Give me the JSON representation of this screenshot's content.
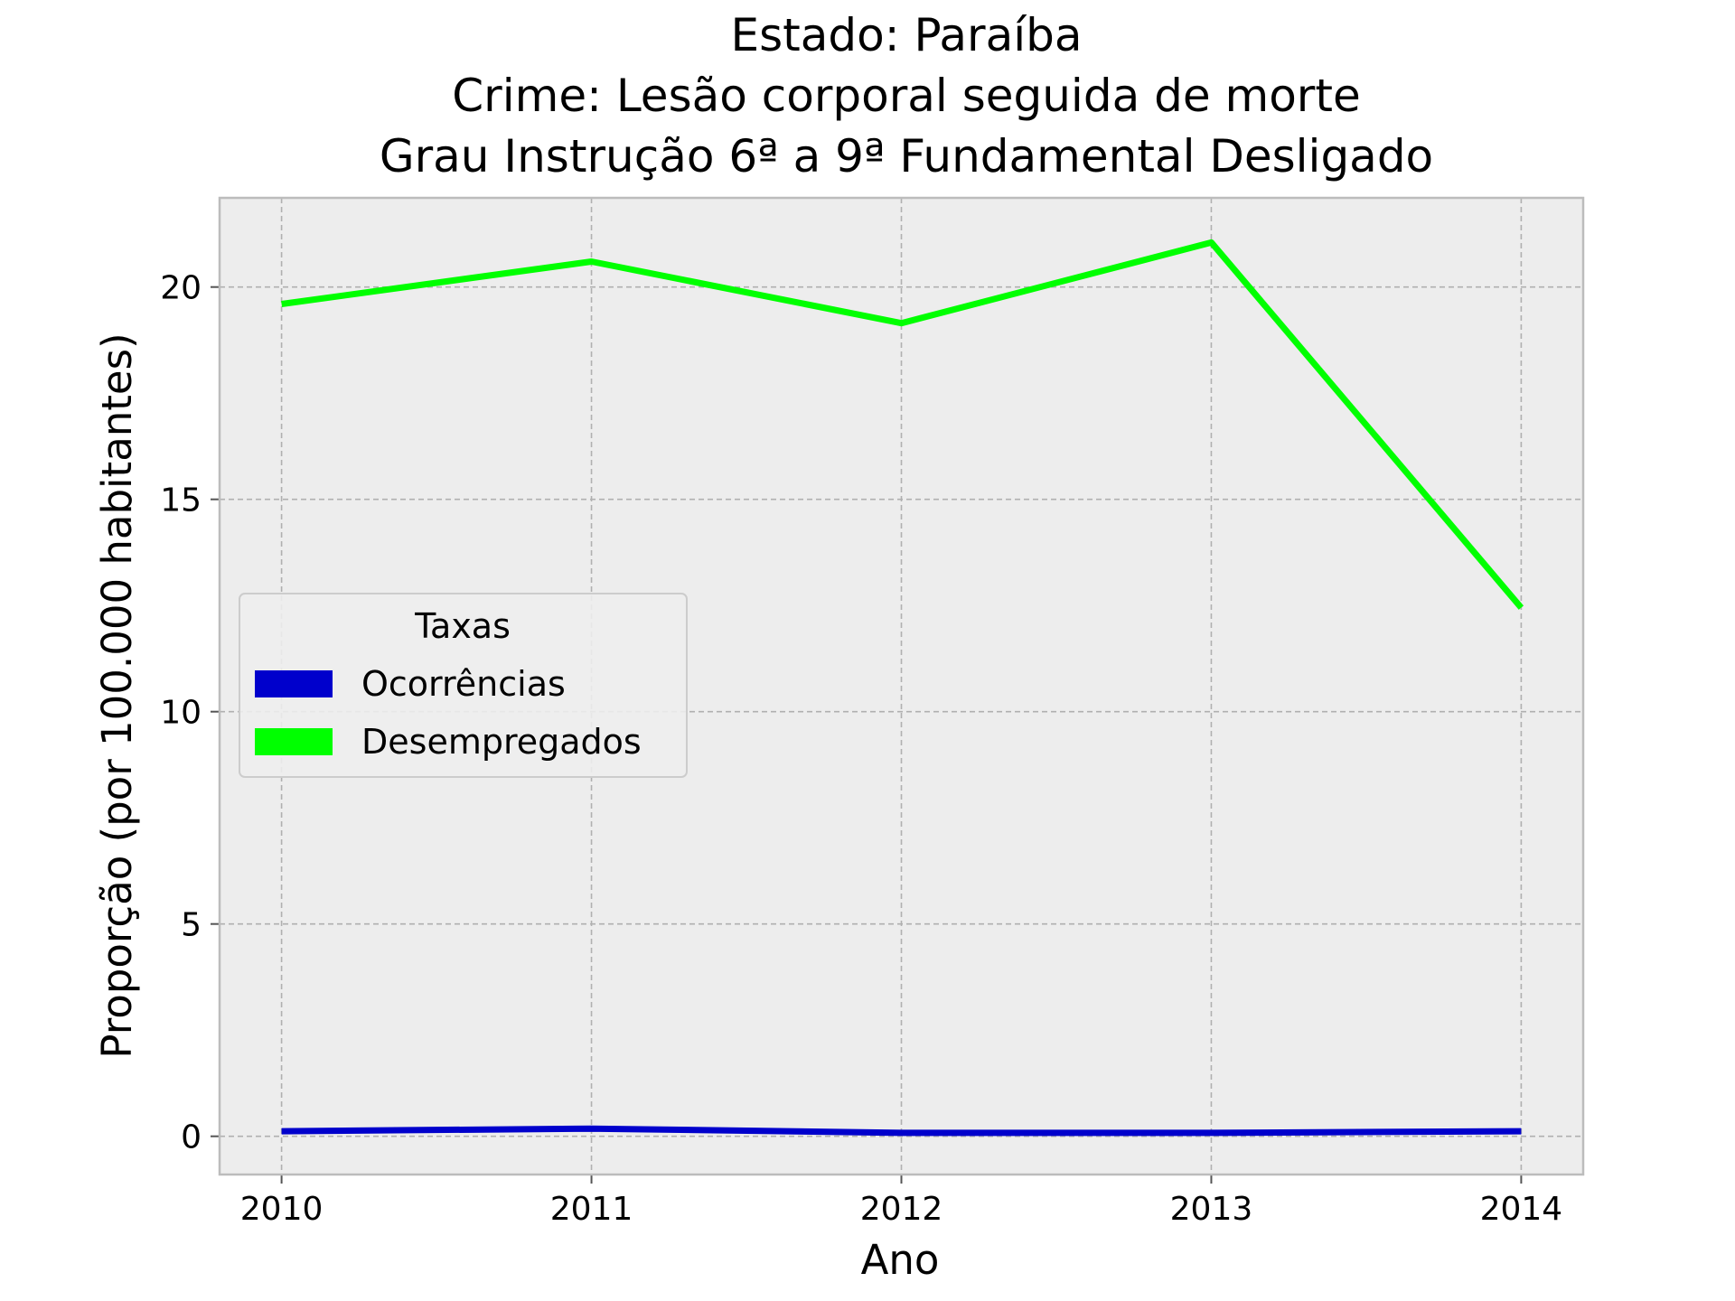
{
  "chart_data": {
    "type": "line",
    "title_lines": [
      "Estado: Paraíba",
      "Crime: Lesão corporal seguida de morte",
      "Grau Instrução  6ª a 9ª Fundamental   Desligado"
    ],
    "xlabel": "Ano",
    "ylabel": "Proporção (por 100.000 habitantes)",
    "x": [
      2010,
      2011,
      2012,
      2013,
      2014
    ],
    "x_tick_labels": [
      "2010",
      "2011",
      "2012",
      "2013",
      "2014"
    ],
    "y_ticks": [
      0,
      5,
      10,
      15,
      20
    ],
    "y_tick_labels": [
      "0",
      "5",
      "10",
      "15",
      "20"
    ],
    "xlim": [
      2009.8,
      2014.2
    ],
    "ylim": [
      -0.9,
      22.1
    ],
    "grid": true,
    "legend": {
      "title": "Taxas",
      "placement": "center-left"
    },
    "series": [
      {
        "name": "Ocorrências",
        "color": "#0000cc",
        "values": [
          0.12,
          0.18,
          0.08,
          0.08,
          0.12
        ]
      },
      {
        "name": "Desempregados",
        "color": "#00ff00",
        "values": [
          19.6,
          20.6,
          19.15,
          21.05,
          12.45
        ]
      }
    ]
  }
}
